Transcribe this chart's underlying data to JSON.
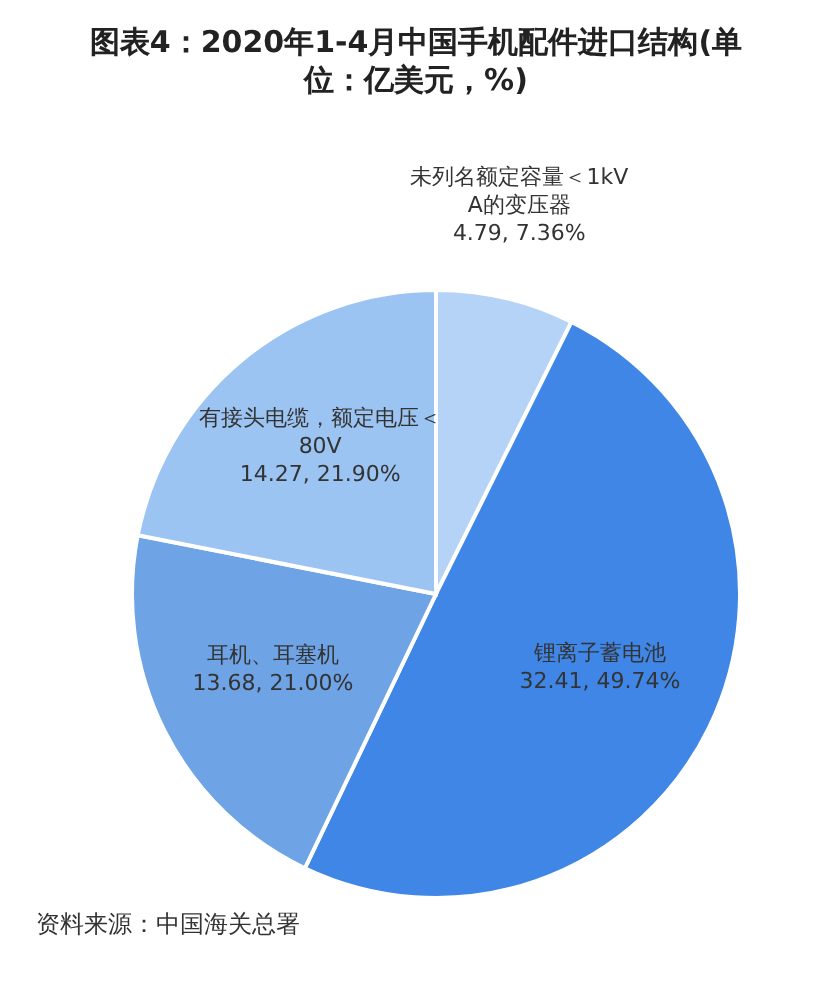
{
  "chart_data": {
    "type": "pie",
    "title": "图表4：2020年1-4月中国手机配件进口结构(单位：亿美元，%)",
    "categories": [
      "未列名额定容量＜1kVA的变压器",
      "锂离子蓄电池",
      "耳机、耳塞机",
      "有接头电缆，额定电压＜80V"
    ],
    "values": [
      4.79,
      32.41,
      13.68,
      14.27
    ],
    "value_labels": [
      "4.79, 7.36%",
      "32.41, 49.74%",
      "13.68, 21.00%",
      "14.27, 21.90%"
    ],
    "colors": [
      "#b5d3f7",
      "#3f86e6",
      "#6ea3e6",
      "#9bc4f2"
    ],
    "legend": false,
    "annotations": [
      "资料来源：中国海关总署"
    ]
  }
}
